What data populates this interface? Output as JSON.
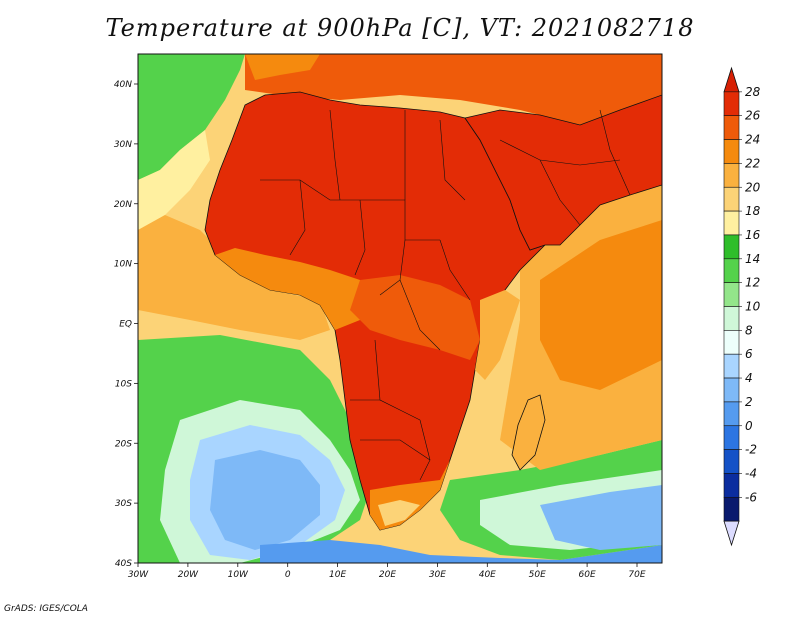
{
  "title": "Temperature at 900hPa [C], VT: 2021082718",
  "credit": "GrADS: IGES/COLA",
  "map": {
    "lon_ticks": [
      "30W",
      "20W",
      "10W",
      "0",
      "10E",
      "20E",
      "30E",
      "40E",
      "50E",
      "60E",
      "70E"
    ],
    "lat_ticks": [
      "40N",
      "30N",
      "20N",
      "10N",
      "EQ",
      "10S",
      "20S",
      "30S",
      "40S"
    ]
  },
  "legend": {
    "labels": [
      "28",
      "26",
      "24",
      "22",
      "20",
      "18",
      "16",
      "14",
      "12",
      "10",
      "8",
      "6",
      "4",
      "2",
      "0",
      "-2",
      "-4",
      "-6"
    ],
    "colors": [
      "#e32c06",
      "#ef5b0a",
      "#f58a0e",
      "#fab13f",
      "#fcd377",
      "#fff0a0",
      "#2fbe2a",
      "#54d24b",
      "#93e58a",
      "#cff7d8",
      "#edfffb",
      "#a9d5ff",
      "#7eb9f7",
      "#559bef",
      "#2c75e2",
      "#1452c7",
      "#0b2d9f",
      "#0a1a6e"
    ],
    "top_arrow_color": "#d72004",
    "bottom_arrow_color": "#dcdcff"
  }
}
